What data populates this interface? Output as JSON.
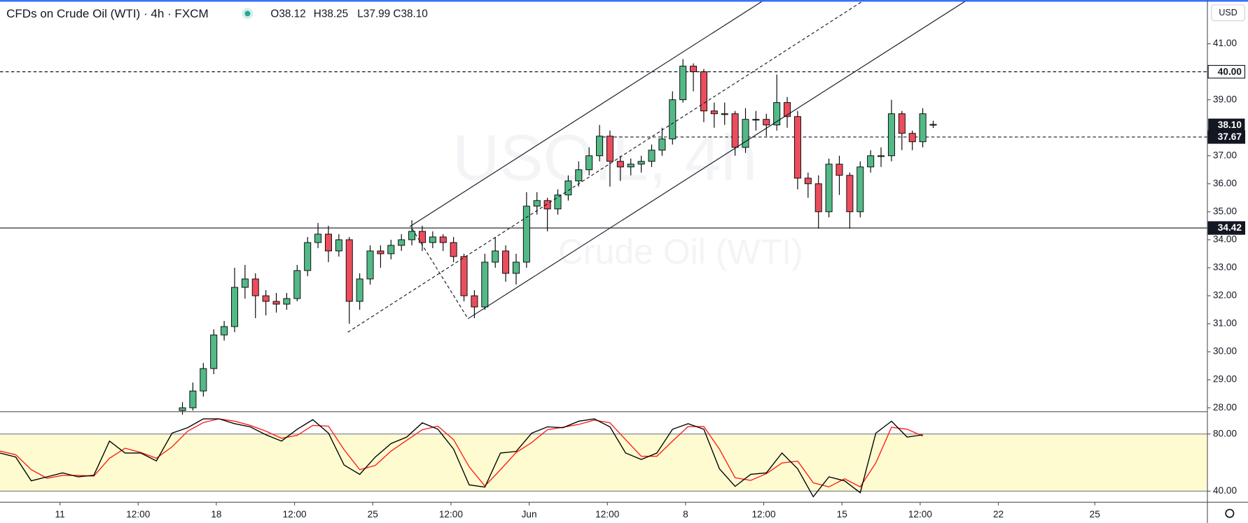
{
  "header": {
    "title": "CFDs on Crude Oil (WTI) · 4h · FXCM",
    "ohlc": [
      "O38.12",
      "H38.25",
      "L37.99",
      "C38.10"
    ]
  },
  "currency": "USD",
  "watermark": [
    "USOIL, 4h",
    "Crude Oil (WTI)"
  ],
  "chart_data": [
    {
      "type": "candlestick",
      "up_color": "#53b987",
      "down_color": "#eb4d5c",
      "wick_color": "#000000",
      "x": [
        35,
        37,
        39,
        41,
        43,
        45,
        47,
        49,
        51,
        53,
        55,
        57,
        59,
        61,
        63,
        65,
        67,
        69,
        71,
        73,
        75,
        77,
        79,
        81,
        83,
        85,
        87,
        89,
        91,
        93,
        95,
        97,
        99,
        101,
        103,
        105,
        107,
        109,
        111,
        113,
        115,
        117,
        119,
        121,
        123,
        125,
        127,
        129,
        131,
        133,
        135,
        137,
        139,
        141,
        143,
        145,
        147,
        149,
        151,
        153,
        155,
        157,
        159,
        161,
        163,
        165,
        167,
        169,
        171,
        173,
        175,
        177,
        179
      ],
      "open": [
        27.9,
        28.0,
        28.6,
        29.4,
        30.6,
        30.9,
        32.3,
        32.6,
        32.0,
        31.8,
        31.7,
        31.9,
        32.9,
        33.9,
        34.2,
        33.6,
        34.0,
        31.8,
        32.6,
        33.6,
        33.5,
        33.8,
        34.0,
        34.3,
        33.9,
        34.1,
        33.9,
        33.4,
        32.0,
        31.6,
        33.2,
        33.6,
        32.8,
        33.2,
        35.2,
        35.4,
        35.1,
        35.6,
        36.1,
        36.5,
        37.0,
        37.7,
        36.8,
        36.6,
        36.7,
        36.8,
        37.2,
        37.6,
        39.0,
        40.2,
        40.0,
        38.6,
        38.5,
        38.5,
        37.3,
        38.3,
        38.3,
        38.1,
        38.9,
        38.4,
        36.2,
        36.0,
        35.0,
        36.7,
        36.3,
        35.0,
        36.6,
        37.0,
        37.0,
        38.5,
        37.8,
        37.5,
        38.12
      ],
      "high": [
        28.2,
        28.9,
        29.6,
        30.8,
        31.1,
        33.0,
        33.1,
        32.8,
        32.2,
        32.1,
        32.1,
        33.1,
        34.1,
        34.6,
        34.5,
        34.2,
        34.1,
        32.8,
        33.8,
        33.8,
        34.0,
        34.2,
        34.7,
        34.5,
        34.3,
        34.2,
        34.1,
        33.5,
        32.2,
        33.5,
        34.1,
        33.8,
        33.5,
        35.7,
        35.7,
        35.5,
        35.8,
        36.3,
        36.8,
        37.3,
        38.1,
        37.9,
        37.0,
        36.9,
        37.0,
        37.4,
        38.0,
        39.3,
        40.45,
        40.3,
        40.1,
        38.9,
        38.9,
        38.6,
        38.7,
        38.6,
        38.5,
        39.9,
        39.1,
        38.6,
        36.4,
        36.3,
        36.9,
        37.0,
        36.4,
        36.8,
        37.2,
        37.3,
        39.0,
        38.6,
        37.9,
        38.7,
        38.25
      ],
      "low": [
        27.75,
        27.9,
        28.4,
        29.2,
        30.4,
        30.7,
        31.9,
        31.2,
        31.3,
        31.4,
        31.5,
        31.8,
        32.7,
        33.7,
        33.2,
        33.4,
        31.0,
        31.5,
        32.4,
        33.0,
        33.3,
        33.6,
        33.8,
        33.6,
        33.7,
        33.6,
        33.2,
        31.8,
        31.2,
        31.5,
        33.0,
        32.5,
        32.4,
        33.0,
        34.9,
        34.3,
        34.9,
        35.4,
        35.9,
        36.3,
        36.8,
        35.9,
        36.1,
        36.3,
        36.4,
        36.6,
        37.0,
        37.4,
        38.9,
        39.3,
        38.2,
        38.0,
        38.1,
        37.0,
        37.1,
        37.9,
        37.7,
        37.9,
        38.0,
        35.8,
        35.5,
        34.4,
        34.8,
        35.6,
        34.4,
        34.8,
        36.4,
        36.6,
        36.8,
        37.2,
        37.2,
        37.3,
        37.99
      ],
      "close": [
        28.0,
        28.6,
        29.4,
        30.6,
        30.9,
        32.3,
        32.6,
        32.0,
        31.8,
        31.7,
        31.9,
        32.9,
        33.9,
        34.2,
        33.6,
        34.0,
        31.8,
        32.6,
        33.6,
        33.5,
        33.8,
        34.0,
        34.3,
        33.9,
        34.1,
        33.9,
        33.4,
        32.0,
        31.6,
        33.2,
        33.6,
        32.8,
        33.2,
        35.2,
        35.4,
        35.1,
        35.6,
        36.1,
        36.5,
        37.0,
        37.7,
        36.8,
        36.6,
        36.7,
        36.8,
        37.2,
        37.6,
        39.0,
        40.2,
        40.0,
        38.6,
        38.5,
        38.5,
        37.3,
        38.3,
        38.3,
        38.1,
        38.9,
        38.4,
        36.2,
        36.0,
        35.0,
        36.7,
        36.3,
        35.0,
        36.6,
        37.0,
        37.0,
        38.5,
        37.8,
        37.5,
        38.5,
        38.1
      ],
      "xlim": [
        0,
        231.6
      ],
      "xticks": [
        {
          "value": 11.5,
          "label": "11"
        },
        {
          "value": 26.5,
          "label": "12:00"
        },
        {
          "value": 41.5,
          "label": "18"
        },
        {
          "value": 56.5,
          "label": "12:00"
        },
        {
          "value": 71.5,
          "label": "25"
        },
        {
          "value": 86.5,
          "label": "12:00"
        },
        {
          "value": 101.5,
          "label": "Jun"
        },
        {
          "value": 116.5,
          "label": "12:00"
        },
        {
          "value": 131.5,
          "label": "8"
        },
        {
          "value": 146.5,
          "label": "12:00"
        },
        {
          "value": 161.5,
          "label": "15"
        },
        {
          "value": 176.5,
          "label": "12:00"
        },
        {
          "value": 191.5,
          "label": "22"
        },
        {
          "value": 210,
          "label": "25"
        }
      ],
      "ylim": [
        27.86,
        42.56
      ],
      "yticks": [
        {
          "value": 28,
          "label": "28.00"
        },
        {
          "value": 29,
          "label": "29.00"
        },
        {
          "value": 30,
          "label": "30.00"
        },
        {
          "value": 31,
          "label": "31.00"
        },
        {
          "value": 32,
          "label": "32.00"
        },
        {
          "value": 33,
          "label": "33.00"
        },
        {
          "value": 34,
          "label": "34.00"
        },
        {
          "value": 35,
          "label": "35.00"
        },
        {
          "value": 36,
          "label": "36.00"
        },
        {
          "value": 37,
          "label": "37.00"
        },
        {
          "value": 39,
          "label": "39.00"
        },
        {
          "value": 41,
          "label": "41.00"
        }
      ],
      "hlines": [
        {
          "value": 40,
          "label": "40.00",
          "style": "dashed",
          "box": "light"
        },
        {
          "value": 37.67,
          "label": "37.67",
          "style": "dashed",
          "box": "dark",
          "xstart": 114.5
        },
        {
          "value": 34.42,
          "label": "34.42",
          "style": "solid",
          "box": "dark"
        }
      ],
      "last_price": {
        "value": 38.1,
        "label": "38.10"
      },
      "grid": false
    },
    {
      "type": "line",
      "x": [
        0,
        3,
        6,
        9,
        12,
        15,
        18,
        21,
        24,
        27,
        30,
        33,
        36,
        39,
        42,
        45,
        48,
        51,
        54,
        57,
        60,
        63,
        66,
        69,
        72,
        75,
        78,
        81,
        84,
        87,
        90,
        93,
        96,
        99,
        102,
        105,
        108,
        111,
        114,
        117,
        120,
        123,
        126,
        129,
        132,
        135,
        138,
        141,
        144,
        147,
        150,
        153,
        156,
        159,
        162,
        165,
        168,
        171,
        174,
        177
      ],
      "series": [
        {
          "color": "#000000",
          "values": [
            66.7,
            63.9,
            47.2,
            50,
            52.8,
            50,
            51.1,
            75,
            66.7,
            66.7,
            61.1,
            80.6,
            84.4,
            90.6,
            90.6,
            87.2,
            85,
            79.4,
            75,
            83.3,
            90,
            80.6,
            58.3,
            51.7,
            63.9,
            73.3,
            77.8,
            87.8,
            83.3,
            69.4,
            44.4,
            42.8,
            66.7,
            67.8,
            80.6,
            85,
            84.4,
            88.9,
            90.6,
            85,
            66.7,
            62.2,
            66.7,
            83.3,
            87.2,
            83.3,
            55.6,
            43.3,
            51.7,
            52.8,
            66.7,
            55.6,
            36.1,
            50,
            47.2,
            38.9,
            80.6,
            88.9,
            77.8,
            79.4
          ]
        },
        {
          "color": "#ff1a1a",
          "values": [
            68,
            65.5,
            55,
            49,
            51,
            51,
            50.5,
            63,
            70,
            67,
            63,
            71,
            82,
            88,
            90.6,
            89,
            86,
            82,
            77,
            79,
            86,
            85.5,
            69,
            55,
            58,
            68,
            75.5,
            83,
            85.5,
            76,
            57,
            43.6,
            55,
            67,
            74,
            83,
            84.7,
            86.7,
            89.7,
            87.8,
            76,
            64.4,
            64.4,
            75,
            85.2,
            85.2,
            69.4,
            49.4,
            47.5,
            52.2,
            59.7,
            61,
            45.8,
            43,
            48.6,
            43,
            59.8,
            84.7,
            83.3,
            78.6
          ]
        }
      ],
      "band": [
        40,
        80
      ],
      "band_color": "#fffbd0",
      "xlim": [
        0,
        231.6
      ],
      "ylim": [
        32.2,
        95.6
      ],
      "yticks": [
        {
          "value": 80,
          "label": "80.00"
        },
        {
          "value": 40,
          "label": "40.00"
        }
      ]
    }
  ]
}
